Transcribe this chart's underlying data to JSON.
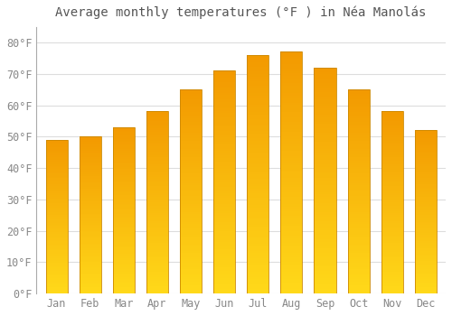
{
  "title": "Average monthly temperatures (°F ) in Néa Manolás",
  "months": [
    "Jan",
    "Feb",
    "Mar",
    "Apr",
    "May",
    "Jun",
    "Jul",
    "Aug",
    "Sep",
    "Oct",
    "Nov",
    "Dec"
  ],
  "values": [
    49,
    50,
    53,
    58,
    65,
    71,
    76,
    77,
    72,
    65,
    58,
    52
  ],
  "bar_color_top": "#FFA500",
  "bar_color_bottom": "#FFD700",
  "bar_edge_color": "#CC8800",
  "background_color": "#FFFFFF",
  "grid_color": "#DDDDDD",
  "text_color": "#888888",
  "ylim": [
    0,
    85
  ],
  "yticks": [
    0,
    10,
    20,
    30,
    40,
    50,
    60,
    70,
    80
  ],
  "ylabel_suffix": "°F",
  "title_fontsize": 10,
  "tick_fontsize": 8.5
}
